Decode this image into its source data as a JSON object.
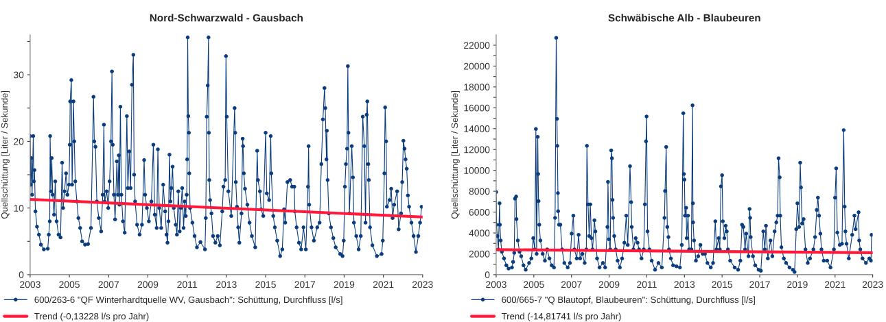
{
  "chart_data": [
    {
      "type": "line",
      "title": "Nord-Schwarzwald - Gausbach",
      "ylabel": "Quellschüttung [Liter / Sekunde]",
      "xlim": [
        2003,
        2023
      ],
      "xticks": [
        2003,
        2005,
        2007,
        2009,
        2011,
        2013,
        2015,
        2017,
        2019,
        2021,
        2023
      ],
      "ylim": [
        0,
        36
      ],
      "yticks": [
        0,
        {
          "value": 5,
          "label": null
        },
        10,
        {
          "value": 15,
          "label": null
        },
        20,
        {
          "value": 25,
          "label": null
        },
        30,
        {
          "value": 35,
          "label": null
        }
      ],
      "marker": "circle",
      "legend": "bottom",
      "series": [
        {
          "name": "600/263-6 \"QF Winterhardtquelle WV, Gausbach\": Schüttung, Durchfluss [l/s]",
          "color": "#0b3d7e",
          "x": [
            2003.0,
            2003.03,
            2003.06,
            2003.1,
            2003.16,
            2003.19,
            2003.22,
            2003.27,
            2003.35,
            2003.45,
            2003.55,
            2003.7,
            2003.9,
            2003.95,
            2004.0,
            2004.02,
            2004.06,
            2004.1,
            2004.15,
            2004.22,
            2004.28,
            2004.35,
            2004.45,
            2004.55,
            2004.63,
            2004.68,
            2004.75,
            2004.83,
            2004.9,
            2004.98,
            2005.02,
            2005.04,
            2005.1,
            2005.14,
            2005.21,
            2005.25,
            2005.3,
            2005.38,
            2005.46,
            2005.55,
            2005.65,
            2005.8,
            2005.95,
            2006.1,
            2006.23,
            2006.27,
            2006.33,
            2006.4,
            2006.5,
            2006.62,
            2006.7,
            2006.76,
            2006.8,
            2006.9,
            2006.98,
            2007.05,
            2007.12,
            2007.17,
            2007.21,
            2007.27,
            2007.33,
            2007.42,
            2007.48,
            2007.52,
            2007.55,
            2007.6,
            2007.65,
            2007.73,
            2007.82,
            2007.93,
            2007.98,
            2008.05,
            2008.12,
            2008.19,
            2008.26,
            2008.3,
            2008.35,
            2008.45,
            2008.58,
            2008.7,
            2008.81,
            2008.86,
            2008.95,
            2009.05,
            2009.18,
            2009.28,
            2009.35,
            2009.45,
            2009.51,
            2009.58,
            2009.68,
            2009.78,
            2009.88,
            2009.95,
            2010.0,
            2010.05,
            2010.1,
            2010.15,
            2010.2,
            2010.26,
            2010.32,
            2010.42,
            2010.48,
            2010.55,
            2010.62,
            2010.68,
            2010.75,
            2010.82,
            2010.88,
            2010.93,
            2010.98,
            2011.0,
            2011.03,
            2011.06,
            2011.09,
            2011.11,
            2011.15,
            2011.27,
            2011.38,
            2011.5,
            2011.68,
            2011.91,
            2011.95,
            2012.0,
            2012.05,
            2012.09,
            2012.11,
            2012.13,
            2012.17,
            2012.24,
            2012.32,
            2012.44,
            2012.56,
            2012.67,
            2012.79,
            2012.85,
            2012.94,
            2012.98,
            2013.02,
            2013.1,
            2013.25,
            2013.42,
            2013.45,
            2013.48,
            2013.54,
            2013.6,
            2013.66,
            2013.77,
            2013.83,
            2013.85,
            2013.89,
            2013.95,
            2014.07,
            2014.18,
            2014.3,
            2014.47,
            2014.57,
            2014.61,
            2014.71,
            2014.77,
            2014.88,
            2015.0,
            2015.06,
            2015.18,
            2015.26,
            2015.29,
            2015.39,
            2015.47,
            2015.59,
            2015.74,
            2015.85,
            2015.94,
            2016.0,
            2016.11,
            2016.25,
            2016.35,
            2016.46,
            2016.49,
            2016.58,
            2016.7,
            2016.81,
            2016.93,
            2017.05,
            2017.16,
            2017.19,
            2017.22,
            2017.34,
            2017.46,
            2017.63,
            2017.75,
            2017.84,
            2017.92,
            2018.0,
            2018.04,
            2018.1,
            2018.12,
            2018.16,
            2018.22,
            2018.33,
            2018.45,
            2018.57,
            2018.8,
            2018.92,
            2018.98,
            2019.04,
            2019.09,
            2019.15,
            2019.19,
            2019.22,
            2019.27,
            2019.39,
            2019.45,
            2019.5,
            2019.62,
            2019.74,
            2019.85,
            2019.95,
            2020.03,
            2020.09,
            2020.15,
            2020.18,
            2020.23,
            2020.26,
            2020.32,
            2020.44,
            2020.67,
            2020.91,
            2020.97,
            2021.05,
            2021.09,
            2021.14,
            2021.18,
            2021.32,
            2021.4,
            2021.47,
            2021.55,
            2021.7,
            2021.78,
            2021.9,
            2021.96,
            2022.02,
            2022.08,
            2022.13,
            2022.19,
            2022.25,
            2022.31,
            2022.43,
            2022.54,
            2022.66,
            2022.78,
            2022.87,
            2022.95
          ],
          "values": [
            20.8,
            13.5,
            17.5,
            12,
            20.8,
            14,
            15.7,
            9.5,
            7.2,
            6,
            4.5,
            3.8,
            3.9,
            6,
            8,
            20.8,
            12.5,
            17.5,
            12,
            9,
            14,
            8,
            6,
            5.6,
            16.8,
            10,
            12.5,
            15.2,
            12,
            13.5,
            19.5,
            26,
            29.2,
            13.5,
            26,
            20,
            14,
            11,
            8.5,
            7,
            5,
            4.5,
            4.6,
            7,
            26.7,
            20,
            19.2,
            11,
            8.5,
            6.5,
            12,
            22.5,
            11,
            12.5,
            10,
            14,
            20,
            30.5,
            19.5,
            12,
            8.3,
            17,
            12,
            17.9,
            10.5,
            25.2,
            12,
            8,
            6.3,
            23.8,
            13,
            18.5,
            13,
            28.5,
            33,
            15,
            11,
            7.5,
            6,
            7.5,
            17.2,
            12,
            10,
            8,
            11,
            19.5,
            9,
            7,
            18.8,
            10,
            7,
            13.5,
            9.5,
            6,
            4.8,
            8,
            18,
            11,
            13,
            16.2,
            10,
            7.5,
            6,
            12.5,
            6.5,
            10,
            13,
            7,
            11,
            8.8,
            12,
            17.3,
            35.6,
            23.8,
            21.3,
            15.2,
            10,
            7.8,
            5.8,
            4.1,
            4.9,
            3.8,
            8.5,
            23.7,
            28.4,
            35.6,
            21.3,
            14.2,
            11.2,
            9.2,
            5.8,
            4.8,
            5.8,
            4.4,
            9.5,
            13.2,
            14.2,
            32.8,
            23.7,
            12.5,
            8.8,
            25,
            21.3,
            13.9,
            10.2,
            7.1,
            4.8,
            9.2,
            20.4,
            19.3,
            15.2,
            12.9,
            10.5,
            7.8,
            5.8,
            4.1,
            18.6,
            14.2,
            12.5,
            9.8,
            8.8,
            21.3,
            12.2,
            11.2,
            20.8,
            15.2,
            8.8,
            7.1,
            5.1,
            2.8,
            3.8,
            9.8,
            7.8,
            13.9,
            14.2,
            13.2,
            13.2,
            9.5,
            7.1,
            4.8,
            3.8,
            7.1,
            3.8,
            13.2,
            19.3,
            10.5,
            7.1,
            5.1,
            7.1,
            7.8,
            16.6,
            23.3,
            28,
            25,
            17.3,
            21.6,
            14.2,
            9.2,
            7.1,
            5.5,
            4.1,
            3.1,
            2.8,
            5.1,
            13.2,
            16.6,
            18.9,
            31.3,
            21.3,
            9.2,
            19.3,
            14.6,
            7.8,
            5.8,
            3.8,
            5.8,
            23.7,
            19.3,
            7.8,
            24,
            26,
            16.6,
            14.2,
            7.1,
            4.4,
            2.8,
            3.1,
            5.1,
            15.2,
            25.1,
            20,
            10.2,
            11.2,
            12.9,
            8.5,
            10.5,
            12.5,
            6.8,
            9.2,
            13.9,
            20.1,
            18.9,
            17.3,
            15.9,
            11.9,
            10.2,
            7.8,
            5.8,
            3.4,
            5.8,
            7.8,
            10.2
          ]
        },
        {
          "name": "Trend (-0,13228 l/s pro Jahr)",
          "type": "line",
          "marker": "none",
          "color": "#ff1a3c",
          "x": [
            2003,
            2023
          ],
          "values": [
            11.3,
            8.65
          ]
        }
      ]
    },
    {
      "type": "line",
      "title": "Schwäbische Alb - Blaubeuren",
      "ylabel": "Quellschüttung [Liter / Sekunde]",
      "xlim": [
        2003,
        2023
      ],
      "xticks": [
        2003,
        2005,
        2007,
        2009,
        2011,
        2013,
        2015,
        2017,
        2019,
        2021,
        2023
      ],
      "ylim": [
        0,
        23000
      ],
      "yticks": [
        0,
        {
          "value": 1000,
          "label": null
        },
        2000,
        {
          "value": 3000,
          "label": null
        },
        4000,
        {
          "value": 5000,
          "label": null
        },
        6000,
        {
          "value": 7000,
          "label": null
        },
        8000,
        {
          "value": 9000,
          "label": null
        },
        10000,
        {
          "value": 11000,
          "label": null
        },
        12000,
        {
          "value": 13000,
          "label": null
        },
        14000,
        {
          "value": 15000,
          "label": null
        },
        16000,
        {
          "value": 17000,
          "label": null
        },
        18000,
        {
          "value": 19000,
          "label": null
        },
        20000,
        {
          "value": 21000,
          "label": null
        },
        22000
      ],
      "marker": "circle",
      "legend": "bottom",
      "series": [
        {
          "name": "600/665-7 \"Q Blautopf, Blaubeuren\": Schüttung, Durchfluss [l/s]",
          "color": "#0b3d7e",
          "x": [
            2003.0,
            2003.02,
            2003.06,
            2003.12,
            2003.18,
            2003.2,
            2003.24,
            2003.3,
            2003.42,
            2003.54,
            2003.66,
            2003.84,
            2003.9,
            2003.96,
            2004.0,
            2004.06,
            2004.08,
            2004.15,
            2004.24,
            2004.33,
            2004.45,
            2004.57,
            2004.75,
            2004.87,
            2004.97,
            2005.05,
            2005.11,
            2005.15,
            2005.21,
            2005.23,
            2005.25,
            2005.29,
            2005.35,
            2005.47,
            2005.59,
            2005.71,
            2005.83,
            2005.95,
            2006.07,
            2006.13,
            2006.19,
            2006.23,
            2006.25,
            2006.28,
            2006.29,
            2006.34,
            2006.41,
            2006.5,
            2006.62,
            2006.8,
            2006.92,
            2007.01,
            2007.1,
            2007.16,
            2007.28,
            2007.38,
            2007.46,
            2007.58,
            2007.7,
            2007.79,
            2007.82,
            2007.88,
            2007.94,
            2008.0,
            2008.06,
            2008.12,
            2008.22,
            2008.27,
            2008.36,
            2008.49,
            2008.67,
            2008.79,
            2008.91,
            2008.94,
            2008.99,
            2009.06,
            2009.11,
            2009.15,
            2009.18,
            2009.21,
            2009.27,
            2009.35,
            2009.45,
            2009.57,
            2009.69,
            2009.81,
            2009.91,
            2009.99,
            2010.11,
            2010.17,
            2010.2,
            2010.29,
            2010.41,
            2010.51,
            2010.59,
            2010.72,
            2010.84,
            2010.9,
            2010.96,
            2010.99,
            2011.04,
            2011.14,
            2011.26,
            2011.44,
            2011.62,
            2011.8,
            2011.94,
            2011.97,
            2012.03,
            2012.09,
            2012.15,
            2012.18,
            2012.28,
            2012.4,
            2012.58,
            2012.76,
            2012.86,
            2012.94,
            2012.97,
            2013.0,
            2013.03,
            2013.09,
            2013.12,
            2013.19,
            2013.25,
            2013.37,
            2013.43,
            2013.45,
            2013.46,
            2013.51,
            2013.61,
            2013.73,
            2013.85,
            2013.97,
            2014.09,
            2014.22,
            2014.4,
            2014.52,
            2014.64,
            2014.7,
            2014.82,
            2014.88,
            2014.94,
            2015.0,
            2015.04,
            2015.12,
            2015.19,
            2015.25,
            2015.31,
            2015.43,
            2015.67,
            2015.85,
            2015.97,
            2016.06,
            2016.13,
            2016.22,
            2016.28,
            2016.4,
            2016.46,
            2016.49,
            2016.52,
            2016.64,
            2016.76,
            2016.94,
            2017.06,
            2017.19,
            2017.27,
            2017.33,
            2017.43,
            2017.57,
            2017.67,
            2017.79,
            2017.88,
            2017.95,
            2018.0,
            2018.06,
            2018.09,
            2018.15,
            2018.28,
            2018.4,
            2018.58,
            2018.76,
            2018.85,
            2018.94,
            2019.0,
            2019.09,
            2019.15,
            2019.19,
            2019.25,
            2019.33,
            2019.43,
            2019.55,
            2019.67,
            2019.85,
            2019.94,
            2020.03,
            2020.09,
            2020.15,
            2020.22,
            2020.28,
            2020.4,
            2020.58,
            2020.76,
            2020.94,
            2021.0,
            2021.06,
            2021.12,
            2021.25,
            2021.37,
            2021.46,
            2021.51,
            2021.55,
            2021.61,
            2021.73,
            2021.91,
            2022.03,
            2022.09,
            2022.25,
            2022.28,
            2022.34,
            2022.46,
            2022.64,
            2022.82,
            2022.91,
            2022.94
          ],
          "values": [
            7920,
            4790,
            3710,
            2420,
            6840,
            4790,
            3280,
            2200,
            1550,
            900,
            580,
            690,
            1230,
            2090,
            7280,
            7490,
            5330,
            3280,
            2200,
            1770,
            900,
            470,
            1120,
            1550,
            3500,
            2420,
            13970,
            1990,
            13210,
            9650,
            7060,
            4790,
            3280,
            1990,
            1340,
            2420,
            1550,
            900,
            690,
            5440,
            22710,
            14940,
            12350,
            7820,
            6090,
            4790,
            4790,
            2420,
            1120,
            690,
            1120,
            3930,
            5660,
            2420,
            1550,
            3820,
            1550,
            1990,
            1120,
            2420,
            12350,
            6740,
            3710,
            6740,
            3500,
            2420,
            5220,
            4150,
            1550,
            690,
            1120,
            690,
            4580,
            8900,
            3390,
            2420,
            11920,
            11160,
            7170,
            5440,
            3710,
            2420,
            1340,
            690,
            1550,
            3070,
            5660,
            2850,
            10410,
            6950,
            4580,
            2420,
            3500,
            3070,
            2420,
            1550,
            2420,
            6740,
            12780,
            15160,
            4150,
            2420,
            1340,
            470,
            1120,
            690,
            5440,
            8030,
            12240,
            4580,
            3610,
            2420,
            1550,
            900,
            800,
            690,
            2850,
            15480,
            9650,
            9110,
            5660,
            6410,
            3500,
            5660,
            2420,
            2420,
            16240,
            6840,
            5010,
            3280,
            1340,
            1770,
            2850,
            1990,
            1990,
            1120,
            690,
            1120,
            5120,
            2420,
            3500,
            2420,
            8460,
            9540,
            5120,
            3500,
            4690,
            4150,
            2420,
            1340,
            690,
            470,
            1340,
            4790,
            4580,
            2420,
            3930,
            1770,
            6300,
            5440,
            3610,
            1770,
            900,
            470,
            370,
            4150,
            2420,
            4690,
            1550,
            3280,
            1770,
            4150,
            5010,
            5660,
            11160,
            9330,
            5660,
            2630,
            1550,
            1120,
            690,
            470,
            260,
            4360,
            6840,
            4580,
            10730,
            8360,
            4900,
            5330,
            2420,
            1120,
            1550,
            2420,
            3610,
            6200,
            7380,
            5660,
            3930,
            2420,
            1340,
            1340,
            690,
            2420,
            7380,
            10190,
            4040,
            2850,
            2960,
            13860,
            6520,
            4150,
            2960,
            1550,
            3820,
            5660,
            4360,
            5980,
            3280,
            2420,
            1550,
            1120,
            1550,
            1340,
            3820
          ]
        },
        {
          "name": "Trend (-14,81741 l/s pro Jahr)",
          "type": "line",
          "marker": "none",
          "color": "#ff1a3c",
          "x": [
            2003,
            2023
          ],
          "values": [
            2400,
            2100
          ]
        }
      ]
    }
  ]
}
